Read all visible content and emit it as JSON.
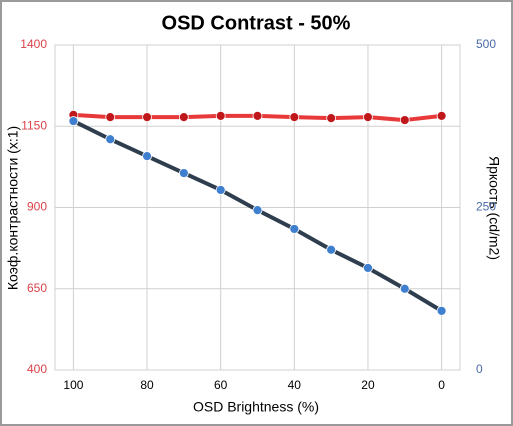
{
  "chart_data": {
    "type": "line",
    "title": "OSD Contrast - 50%",
    "x_label": "OSD Brightness (%)",
    "y_label": "Коэф.контрастности (x:1)",
    "y2_label": "Яркость (cd/m2)",
    "x": [
      100,
      90,
      80,
      70,
      60,
      50,
      40,
      30,
      20,
      10,
      0
    ],
    "xlim": [
      105,
      -5
    ],
    "xticks": [
      100,
      80,
      60,
      40,
      20,
      0
    ],
    "ylim": [
      400,
      1400
    ],
    "yticks": [
      400,
      650,
      900,
      1150,
      1400
    ],
    "y2lim": [
      0,
      500
    ],
    "y2ticks": [
      0,
      250,
      500
    ],
    "grid": true,
    "series": [
      {
        "color": "#e8393a",
        "marker_color": "#c0171b",
        "values": [
          1185,
          1178,
          1178,
          1178,
          1182,
          1182,
          1178,
          1175,
          1178,
          1169,
          1182
        ]
      },
      {
        "color": "#2e3e4e",
        "marker_color": "#3f7fcf",
        "axis": "y2",
        "values": [
          383,
          355,
          329,
          303,
          277,
          246,
          217,
          185,
          157,
          125,
          91
        ]
      }
    ],
    "y_tick_color": "#d9434a",
    "y2_tick_color": "#4a6aa8"
  }
}
